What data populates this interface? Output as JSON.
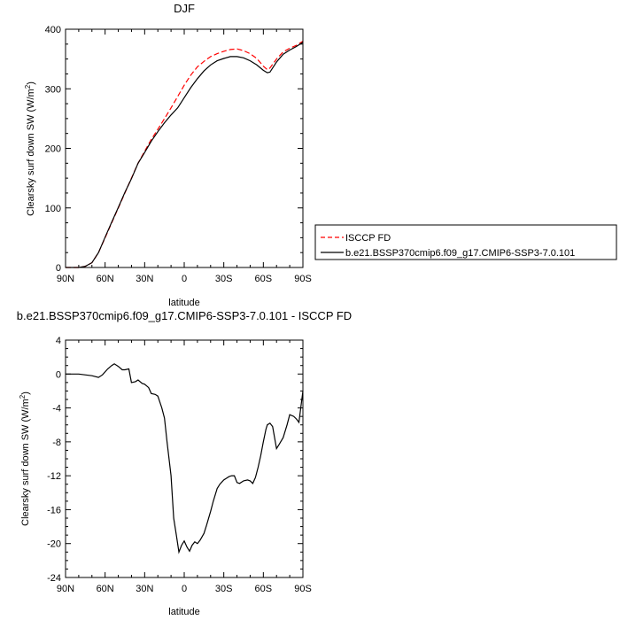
{
  "chart_data": [
    {
      "type": "line",
      "title": "DJF",
      "xlabel": "latitude",
      "ylabel": "Clearsky surf down SW (W/m²)",
      "ylabel_main": "Clearsky surf down SW (W/m",
      "ylabel_sup": "2",
      "ylabel_end": ")",
      "xlim": [
        90,
        -90
      ],
      "ylim": [
        0,
        400
      ],
      "xticks": [
        90,
        60,
        30,
        0,
        -30,
        -60,
        -90
      ],
      "xtick_labels": [
        "90N",
        "60N",
        "30N",
        "0",
        "30S",
        "60S",
        "90S"
      ],
      "yticks": [
        0,
        100,
        200,
        300,
        400
      ],
      "ytick_labels": [
        "0",
        "100",
        "200",
        "300",
        "400"
      ],
      "legend": "right",
      "series": [
        {
          "name": "ISCCP FD",
          "color": "#ff0000",
          "dash": "dashed",
          "x": [
            90,
            85,
            80,
            75,
            70,
            65,
            60,
            55,
            50,
            45,
            40,
            35,
            30,
            25,
            20,
            15,
            10,
            5,
            0,
            -5,
            -10,
            -15,
            -20,
            -25,
            -30,
            -35,
            -40,
            -45,
            -50,
            -55,
            -60,
            -63,
            -65,
            -70,
            -75,
            -80,
            -85,
            -90
          ],
          "y": [
            0,
            0,
            0,
            2,
            8,
            25,
            50,
            75,
            100,
            125,
            150,
            175,
            195,
            215,
            232,
            250,
            268,
            287,
            306,
            323,
            337,
            346,
            354,
            359,
            363,
            366,
            367,
            364,
            359,
            351,
            338,
            332,
            335,
            350,
            362,
            368,
            373,
            380
          ]
        },
        {
          "name": "b.e21.BSSP370cmip6.f09_g17.CMIP6-SSP3-7.0.101",
          "color": "#000000",
          "dash": "solid",
          "x": [
            90,
            85,
            80,
            75,
            70,
            65,
            60,
            55,
            50,
            45,
            40,
            35,
            30,
            25,
            20,
            15,
            10,
            5,
            0,
            -5,
            -10,
            -15,
            -20,
            -25,
            -30,
            -35,
            -40,
            -45,
            -50,
            -55,
            -60,
            -63,
            -65,
            -70,
            -75,
            -80,
            -85,
            -90
          ],
          "y": [
            0,
            0,
            0,
            2,
            8,
            25,
            51,
            76,
            101,
            126,
            149,
            175,
            193,
            212,
            228,
            243,
            256,
            268,
            285,
            302,
            317,
            330,
            340,
            347,
            351,
            354,
            354,
            352,
            347,
            340,
            331,
            327,
            328,
            345,
            358,
            365,
            371,
            378
          ]
        }
      ]
    },
    {
      "type": "line",
      "title": "b.e21.BSSP370cmip6.f09_g17.CMIP6-SSP3-7.0.101 - ISCCP FD",
      "xlabel": "latitude",
      "ylabel": "Clearsky surf down SW (W/m²)",
      "ylabel_main": "Clearsky surf down SW (W/m",
      "ylabel_sup": "2",
      "ylabel_end": ")",
      "xlim": [
        90,
        -90
      ],
      "ylim": [
        -24,
        4
      ],
      "xticks": [
        90,
        60,
        30,
        0,
        -30,
        -60,
        -90
      ],
      "xtick_labels": [
        "90N",
        "60N",
        "30N",
        "0",
        "30S",
        "60S",
        "90S"
      ],
      "yticks": [
        4,
        0,
        -4,
        -8,
        -12,
        -16,
        -20,
        -24
      ],
      "ytick_labels": [
        "4",
        "0",
        "-4",
        "-8",
        "-12",
        "-16",
        "-20",
        "-24"
      ],
      "series": [
        {
          "color": "#000000",
          "dash": "solid",
          "x": [
            90,
            80,
            70,
            65,
            62,
            58,
            55,
            53,
            50,
            47,
            45,
            42,
            40,
            37,
            35,
            32,
            30,
            27,
            25,
            22,
            20,
            17,
            15,
            13,
            10,
            8,
            6,
            4,
            2,
            0,
            -2,
            -4,
            -6,
            -8,
            -10,
            -12,
            -15,
            -17,
            -20,
            -22,
            -25,
            -27,
            -30,
            -32,
            -34,
            -36,
            -38,
            -40,
            -42,
            -45,
            -48,
            -50,
            -52,
            -54,
            -56,
            -58,
            -60,
            -62,
            -63,
            -65,
            -67,
            -70,
            -72,
            -75,
            -78,
            -80,
            -83,
            -85,
            -87,
            -90
          ],
          "y": [
            0,
            0,
            -0.2,
            -0.4,
            -0.1,
            0.6,
            1.0,
            1.2,
            0.9,
            0.5,
            0.5,
            0.6,
            -1.0,
            -0.9,
            -0.7,
            -1.1,
            -1.2,
            -1.6,
            -2.3,
            -2.4,
            -2.6,
            -4.0,
            -5.2,
            -8.0,
            -12.0,
            -17.0,
            -19.0,
            -21.0,
            -20.2,
            -19.7,
            -20.4,
            -20.9,
            -20.2,
            -19.8,
            -20.0,
            -19.6,
            -18.8,
            -17.8,
            -16.2,
            -15.0,
            -13.5,
            -13.0,
            -12.5,
            -12.3,
            -12.1,
            -12.0,
            -12.0,
            -12.8,
            -12.9,
            -12.6,
            -12.5,
            -12.6,
            -12.9,
            -12.2,
            -11.0,
            -9.6,
            -8.0,
            -6.5,
            -6.0,
            -5.8,
            -6.2,
            -8.8,
            -8.3,
            -7.5,
            -6.0,
            -4.8,
            -5.0,
            -5.3,
            -5.7,
            -2.0
          ]
        }
      ]
    }
  ]
}
